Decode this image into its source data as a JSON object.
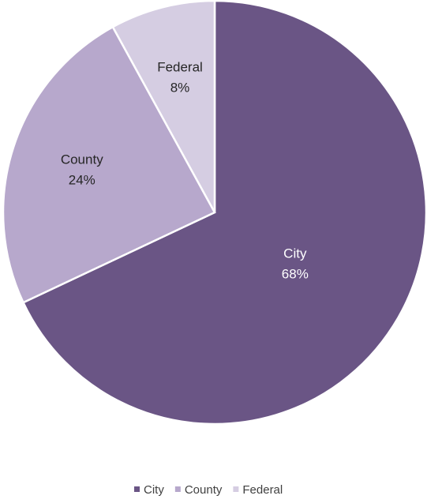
{
  "chart_data": {
    "type": "pie",
    "title": "",
    "categories": [
      "City",
      "County",
      "Federal"
    ],
    "values": [
      68,
      24,
      8
    ],
    "value_labels": [
      "68%",
      "24%",
      "8%"
    ],
    "colors": [
      "#6a5585",
      "#b7a8cc",
      "#d5cde2"
    ],
    "label_colors": [
      "#ffffff",
      "#262626",
      "#262626"
    ],
    "start": "12 o'clock, clockwise",
    "legend": {
      "position": "bottom",
      "entries": [
        "City",
        "County",
        "Federal"
      ]
    }
  }
}
